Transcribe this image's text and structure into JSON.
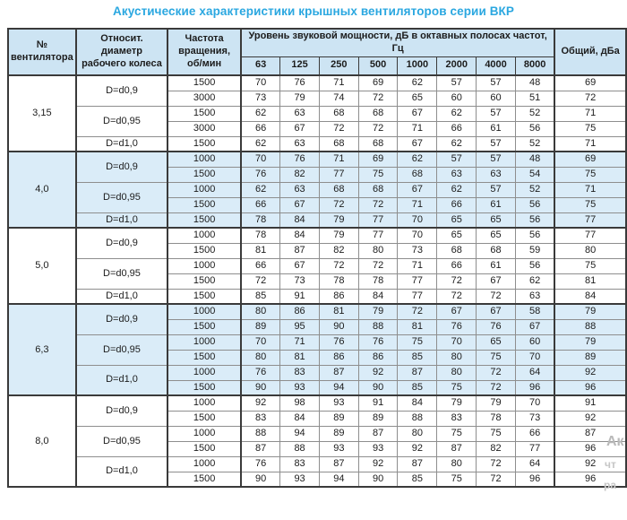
{
  "title": "Акустические характеристики крышных вентиляторов серии ВКР",
  "colors": {
    "title_blue": "#2aa7e0",
    "header_bg": "#cde4f3",
    "band_bg": "#daecf8",
    "border_dark": "#3a3a3a",
    "border_light": "#8e8e8e"
  },
  "table": {
    "headers": {
      "fan": "№ вентилятора",
      "diameter": "Относит. диаметр рабочего колеса",
      "rpm": "Частота вращения, об/мин",
      "levels": "Уровень звуковой мощности, дБ в октавных полосах частот, Гц",
      "total": "Общий, дБа",
      "freqs": [
        "63",
        "125",
        "250",
        "500",
        "1000",
        "2000",
        "4000",
        "8000"
      ]
    },
    "groups": [
      {
        "fan": "3,15",
        "subs": [
          {
            "d": "D=d0,9",
            "rows": [
              {
                "rpm": "1500",
                "v": [
                  70,
                  76,
                  71,
                  69,
                  62,
                  57,
                  57,
                  48,
                  69
                ]
              },
              {
                "rpm": "3000",
                "v": [
                  73,
                  79,
                  74,
                  72,
                  65,
                  60,
                  60,
                  51,
                  72
                ]
              }
            ]
          },
          {
            "d": "D=d0,95",
            "rows": [
              {
                "rpm": "1500",
                "v": [
                  62,
                  63,
                  68,
                  68,
                  67,
                  62,
                  57,
                  52,
                  71
                ]
              },
              {
                "rpm": "3000",
                "v": [
                  66,
                  67,
                  72,
                  72,
                  71,
                  66,
                  61,
                  56,
                  75
                ]
              }
            ]
          },
          {
            "d": "D=d1,0",
            "rows": [
              {
                "rpm": "1500",
                "v": [
                  62,
                  63,
                  68,
                  68,
                  67,
                  62,
                  57,
                  52,
                  71
                ]
              }
            ]
          }
        ]
      },
      {
        "fan": "4,0",
        "subs": [
          {
            "d": "D=d0,9",
            "rows": [
              {
                "rpm": "1000",
                "v": [
                  70,
                  76,
                  71,
                  69,
                  62,
                  57,
                  57,
                  48,
                  69
                ]
              },
              {
                "rpm": "1500",
                "v": [
                  76,
                  82,
                  77,
                  75,
                  68,
                  63,
                  63,
                  54,
                  75
                ]
              }
            ]
          },
          {
            "d": "D=d0,95",
            "rows": [
              {
                "rpm": "1000",
                "v": [
                  62,
                  63,
                  68,
                  68,
                  67,
                  62,
                  57,
                  52,
                  71
                ]
              },
              {
                "rpm": "1500",
                "v": [
                  66,
                  67,
                  72,
                  72,
                  71,
                  66,
                  61,
                  56,
                  75
                ]
              }
            ]
          },
          {
            "d": "D=d1,0",
            "rows": [
              {
                "rpm": "1500",
                "v": [
                  78,
                  84,
                  79,
                  77,
                  70,
                  65,
                  65,
                  56,
                  77
                ]
              }
            ]
          }
        ]
      },
      {
        "fan": "5,0",
        "subs": [
          {
            "d": "D=d0,9",
            "rows": [
              {
                "rpm": "1000",
                "v": [
                  78,
                  84,
                  79,
                  77,
                  70,
                  65,
                  65,
                  56,
                  77
                ]
              },
              {
                "rpm": "1500",
                "v": [
                  81,
                  87,
                  82,
                  80,
                  73,
                  68,
                  68,
                  59,
                  80
                ]
              }
            ]
          },
          {
            "d": "D=d0,95",
            "rows": [
              {
                "rpm": "1000",
                "v": [
                  66,
                  67,
                  72,
                  72,
                  71,
                  66,
                  61,
                  56,
                  75
                ]
              },
              {
                "rpm": "1500",
                "v": [
                  72,
                  73,
                  78,
                  78,
                  77,
                  72,
                  67,
                  62,
                  81
                ]
              }
            ]
          },
          {
            "d": "D=d1,0",
            "rows": [
              {
                "rpm": "1500",
                "v": [
                  85,
                  91,
                  86,
                  84,
                  77,
                  72,
                  72,
                  63,
                  84
                ]
              }
            ]
          }
        ]
      },
      {
        "fan": "6,3",
        "subs": [
          {
            "d": "D=d0,9",
            "rows": [
              {
                "rpm": "1000",
                "v": [
                  80,
                  86,
                  81,
                  79,
                  72,
                  67,
                  67,
                  58,
                  79
                ]
              },
              {
                "rpm": "1500",
                "v": [
                  89,
                  95,
                  90,
                  88,
                  81,
                  76,
                  76,
                  67,
                  88
                ]
              }
            ]
          },
          {
            "d": "D=d0,95",
            "rows": [
              {
                "rpm": "1000",
                "v": [
                  70,
                  71,
                  76,
                  76,
                  75,
                  70,
                  65,
                  60,
                  79
                ]
              },
              {
                "rpm": "1500",
                "v": [
                  80,
                  81,
                  86,
                  86,
                  85,
                  80,
                  75,
                  70,
                  89
                ]
              }
            ]
          },
          {
            "d": "D=d1,0",
            "rows": [
              {
                "rpm": "1000",
                "v": [
                  76,
                  83,
                  87,
                  92,
                  87,
                  80,
                  72,
                  64,
                  92
                ]
              },
              {
                "rpm": "1500",
                "v": [
                  90,
                  93,
                  94,
                  90,
                  85,
                  75,
                  72,
                  96,
                  96
                ]
              }
            ]
          }
        ]
      },
      {
        "fan": "8,0",
        "subs": [
          {
            "d": "D=d0,9",
            "rows": [
              {
                "rpm": "1000",
                "v": [
                  92,
                  98,
                  93,
                  91,
                  84,
                  79,
                  79,
                  70,
                  91
                ]
              },
              {
                "rpm": "1500",
                "v": [
                  83,
                  84,
                  89,
                  89,
                  88,
                  83,
                  78,
                  73,
                  92
                ]
              }
            ]
          },
          {
            "d": "D=d0,95",
            "rows": [
              {
                "rpm": "1000",
                "v": [
                  88,
                  94,
                  89,
                  87,
                  80,
                  75,
                  75,
                  66,
                  87
                ]
              },
              {
                "rpm": "1500",
                "v": [
                  87,
                  88,
                  93,
                  93,
                  92,
                  87,
                  82,
                  77,
                  96
                ]
              }
            ]
          },
          {
            "d": "D=d1,0",
            "rows": [
              {
                "rpm": "1000",
                "v": [
                  76,
                  83,
                  87,
                  92,
                  87,
                  80,
                  72,
                  64,
                  92
                ]
              },
              {
                "rpm": "1500",
                "v": [
                  90,
                  93,
                  94,
                  90,
                  85,
                  75,
                  72,
                  96,
                  96
                ]
              }
            ]
          }
        ]
      }
    ]
  },
  "watermark": {
    "fragments": [
      "Ак",
      "чт",
      "ра"
    ]
  }
}
